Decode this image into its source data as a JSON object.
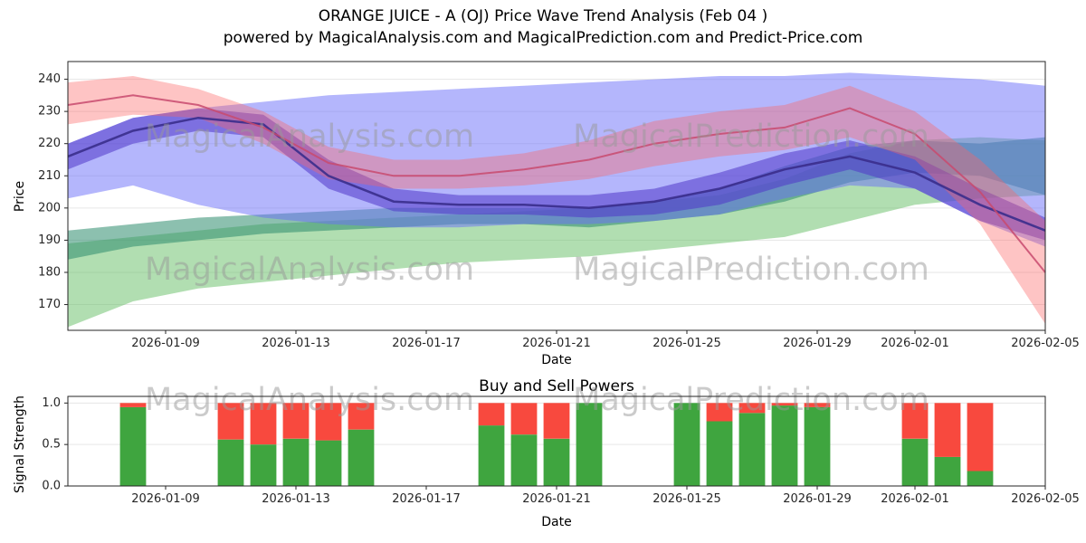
{
  "header": {
    "title_line1": "ORANGE JUICE - A (OJ) Price Wave Trend Analysis (Feb 04 )",
    "title_line2": "powered by MagicalAnalysis.com and MagicalPrediction.com and Predict-Price.com"
  },
  "watermarks": {
    "analysis": "MagicalAnalysis.com",
    "prediction": "MagicalPrediction.com"
  },
  "chart_data": [
    {
      "type": "area",
      "name": "price-wave-trend",
      "xlabel": "Date",
      "ylabel": "Price",
      "ylim": [
        162,
        245.5
      ],
      "y_ticks": [
        170,
        180,
        190,
        200,
        210,
        220,
        230,
        240
      ],
      "x_start_date": "2026-01-06",
      "x_end_day": 30,
      "x_ticks": [
        {
          "day": 3,
          "label": "2026-01-09"
        },
        {
          "day": 7,
          "label": "2026-01-13"
        },
        {
          "day": 11,
          "label": "2026-01-17"
        },
        {
          "day": 15,
          "label": "2026-01-21"
        },
        {
          "day": 19,
          "label": "2026-01-25"
        },
        {
          "day": 23,
          "label": "2026-01-29"
        },
        {
          "day": 26,
          "label": "2026-02-01"
        },
        {
          "day": 30,
          "label": "2026-02-05"
        }
      ],
      "x_days": [
        0,
        2,
        4,
        6,
        8,
        10,
        12,
        14,
        16,
        18,
        20,
        22,
        24,
        26,
        28,
        30
      ],
      "grid": true,
      "bands": [
        {
          "name": "green-support-band",
          "color": "rgba(100,190,100,0.5)",
          "lower": [
            163,
            171,
            175,
            177,
            179,
            181,
            183,
            184,
            185,
            187,
            189,
            191,
            196,
            201,
            203,
            204
          ],
          "upper": [
            189,
            191,
            193,
            195,
            196,
            197,
            198,
            199,
            200,
            202,
            204,
            209,
            217,
            221,
            222,
            221
          ]
        },
        {
          "name": "teal-mid-band",
          "color": "rgba(45,140,110,0.55)",
          "lower": [
            184,
            188,
            190,
            192,
            193,
            194,
            195,
            195,
            194,
            196,
            198,
            202,
            208,
            211,
            210,
            204
          ],
          "upper": [
            193,
            195,
            197,
            198,
            199,
            200,
            200,
            200,
            200,
            202,
            206,
            213,
            219,
            221,
            220,
            222
          ]
        },
        {
          "name": "blue-forecast-band",
          "color": "rgba(105,110,250,0.5)",
          "lower": [
            203,
            207,
            201,
            197,
            195,
            194,
            194,
            195,
            195,
            196,
            198,
            203,
            207,
            206,
            196,
            188
          ],
          "upper": [
            220,
            228,
            231,
            233,
            235,
            236,
            237,
            238,
            239,
            240,
            241,
            241,
            242,
            241,
            240,
            238
          ]
        },
        {
          "name": "purple-wave-band",
          "color": "rgba(80,55,200,0.55)",
          "lower": [
            212,
            220,
            224,
            222,
            206,
            199,
            198,
            198,
            197,
            198,
            201,
            207,
            212,
            206,
            196,
            190
          ],
          "upper": [
            220,
            228,
            231,
            229,
            215,
            206,
            204,
            204,
            204,
            206,
            211,
            217,
            221,
            216,
            206,
            197
          ]
        },
        {
          "name": "red-resistance-band",
          "color": "rgba(252,100,100,0.38)",
          "lower": [
            226,
            229,
            228,
            220,
            209,
            206,
            206,
            207,
            209,
            213,
            216,
            218,
            222,
            215,
            195,
            164
          ],
          "upper": [
            239,
            241,
            237,
            230,
            219,
            215,
            215,
            217,
            221,
            227,
            230,
            232,
            238,
            230,
            215,
            196
          ]
        }
      ],
      "lines": [
        {
          "name": "purple-trend-line",
          "color": "rgba(58,45,140,0.9)",
          "width": 2.5,
          "values": [
            216,
            224,
            228,
            226,
            210,
            202,
            201,
            201,
            200,
            202,
            206,
            212,
            216,
            211,
            201,
            193
          ]
        },
        {
          "name": "crimson-trend-line",
          "color": "rgba(200,74,110,0.85)",
          "width": 2,
          "values": [
            232,
            235,
            232,
            225,
            214,
            210,
            210,
            212,
            215,
            220,
            223,
            225,
            231,
            223,
            205,
            180
          ]
        }
      ]
    },
    {
      "type": "bar",
      "name": "buy-sell-powers",
      "title": "Buy and Sell Powers",
      "xlabel": "Date",
      "ylabel": "Signal Strength",
      "ylim": [
        0,
        1.08
      ],
      "y_ticks": [
        0.0,
        0.5,
        1.0
      ],
      "x_start_date": "2026-01-06",
      "x_end_day": 30,
      "x_ticks": [
        {
          "day": 3,
          "label": "2026-01-09"
        },
        {
          "day": 7,
          "label": "2026-01-13"
        },
        {
          "day": 11,
          "label": "2026-01-17"
        },
        {
          "day": 15,
          "label": "2026-01-21"
        },
        {
          "day": 19,
          "label": "2026-01-25"
        },
        {
          "day": 23,
          "label": "2026-01-29"
        },
        {
          "day": 26,
          "label": "2026-02-01"
        },
        {
          "day": 30,
          "label": "2026-02-05"
        }
      ],
      "grid": true,
      "series": [
        {
          "name": "Buy",
          "color": "#3fa53f"
        },
        {
          "name": "Sell",
          "color": "#f8493e"
        }
      ],
      "bars": [
        {
          "date": "2026-01-08",
          "buy": 0.95,
          "sell": 0.05
        },
        {
          "date": "2026-01-11",
          "buy": 0.56,
          "sell": 0.44
        },
        {
          "date": "2026-01-12",
          "buy": 0.5,
          "sell": 0.5
        },
        {
          "date": "2026-01-13",
          "buy": 0.57,
          "sell": 0.43
        },
        {
          "date": "2026-01-14",
          "buy": 0.55,
          "sell": 0.45
        },
        {
          "date": "2026-01-15",
          "buy": 0.68,
          "sell": 0.32
        },
        {
          "date": "2026-01-19",
          "buy": 0.73,
          "sell": 0.27
        },
        {
          "date": "2026-01-20",
          "buy": 0.62,
          "sell": 0.38
        },
        {
          "date": "2026-01-21",
          "buy": 0.57,
          "sell": 0.43
        },
        {
          "date": "2026-01-22",
          "buy": 1.0,
          "sell": 0.0
        },
        {
          "date": "2026-01-25",
          "buy": 1.0,
          "sell": 0.0
        },
        {
          "date": "2026-01-26",
          "buy": 0.78,
          "sell": 0.22
        },
        {
          "date": "2026-01-27",
          "buy": 0.88,
          "sell": 0.12
        },
        {
          "date": "2026-01-28",
          "buy": 0.97,
          "sell": 0.03
        },
        {
          "date": "2026-01-29",
          "buy": 0.95,
          "sell": 0.05
        },
        {
          "date": "2026-02-01",
          "buy": 0.57,
          "sell": 0.43
        },
        {
          "date": "2026-02-02",
          "buy": 0.35,
          "sell": 0.65
        },
        {
          "date": "2026-02-03",
          "buy": 0.18,
          "sell": 0.82
        }
      ]
    }
  ]
}
